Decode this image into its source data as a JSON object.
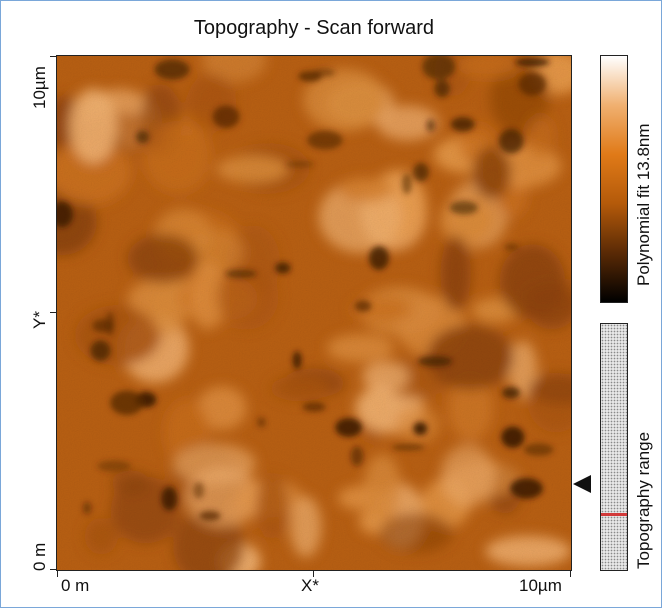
{
  "window": {
    "title": "Topography - Scan forward"
  },
  "axes": {
    "y_top_label": "10µm",
    "y_mid_label": "Y*",
    "y_bottom_label": "0 m",
    "x_left_label": "0 m",
    "x_mid_label": "X*",
    "x_right_label": "10µm"
  },
  "colorbar": {
    "label": "Polynomial fit 13.8nm",
    "colors": [
      "#000000",
      "#5a2a05",
      "#b45a0a",
      "#e07a18",
      "#f0b070",
      "#ffffff"
    ]
  },
  "range": {
    "label": "Topography range",
    "marker_fraction": 0.77,
    "marker_color": "#d23a3a",
    "arrow_icon": "triangle-left-icon"
  },
  "image": {
    "base_color": "#b85f12"
  }
}
